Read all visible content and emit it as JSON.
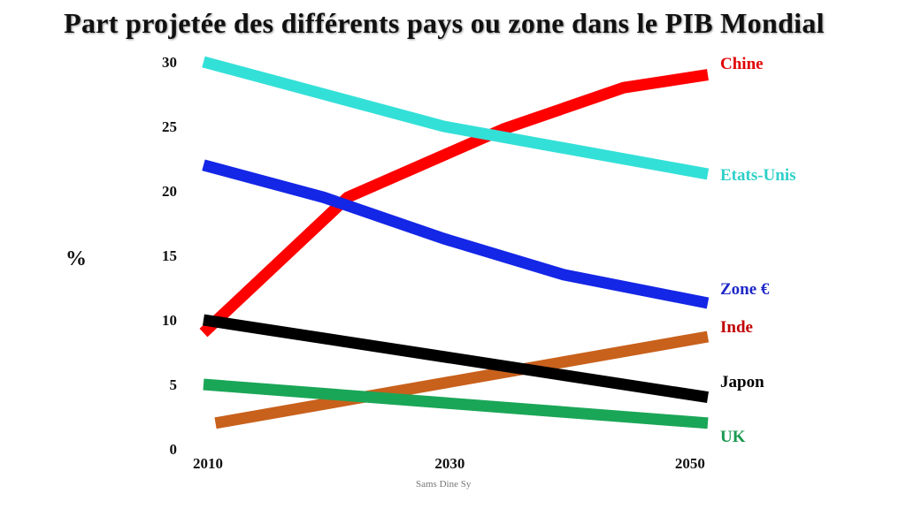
{
  "chart_data": {
    "type": "line",
    "title": "Part projetée des différents pays ou zone dans le PIB Mondial",
    "ylabel": "%",
    "xlabel": "",
    "xlim": [
      2010,
      2052
    ],
    "ylim": [
      0,
      30
    ],
    "x_ticks": [
      2010,
      2030,
      2050
    ],
    "y_ticks": [
      0,
      5,
      10,
      15,
      20,
      25,
      30
    ],
    "grid": false,
    "legend": "right",
    "series": [
      {
        "name": "Chine",
        "color": "#ff0000",
        "x": [
          2010,
          2022,
          2035,
          2045,
          2052
        ],
        "y": [
          9,
          19.5,
          24.8,
          28,
          29
        ]
      },
      {
        "name": "Etats-Unis",
        "color": "#33e0d8",
        "x": [
          2010,
          2030,
          2052
        ],
        "y": [
          30,
          25,
          21.3
        ]
      },
      {
        "name": "Zone €",
        "color": "#1426e6",
        "x": [
          2010,
          2020,
          2030,
          2040,
          2052
        ],
        "y": [
          22,
          19.5,
          16.3,
          13.5,
          11.3
        ]
      },
      {
        "name": "Inde",
        "color": "#c8611c",
        "x": [
          2011,
          2052
        ],
        "y": [
          2,
          8.7
        ]
      },
      {
        "name": "Japon",
        "color": "#000000",
        "x": [
          2010,
          2052
        ],
        "y": [
          10,
          4
        ]
      },
      {
        "name": "UK",
        "color": "#1aa657",
        "x": [
          2010,
          2052
        ],
        "y": [
          5,
          2
        ]
      }
    ]
  },
  "series_label_colors": [
    "#e00000",
    "#2ed0c8",
    "#1f28c8",
    "#c00000",
    "#000000",
    "#1a9a50"
  ],
  "credit": "Sams Dine Sy"
}
